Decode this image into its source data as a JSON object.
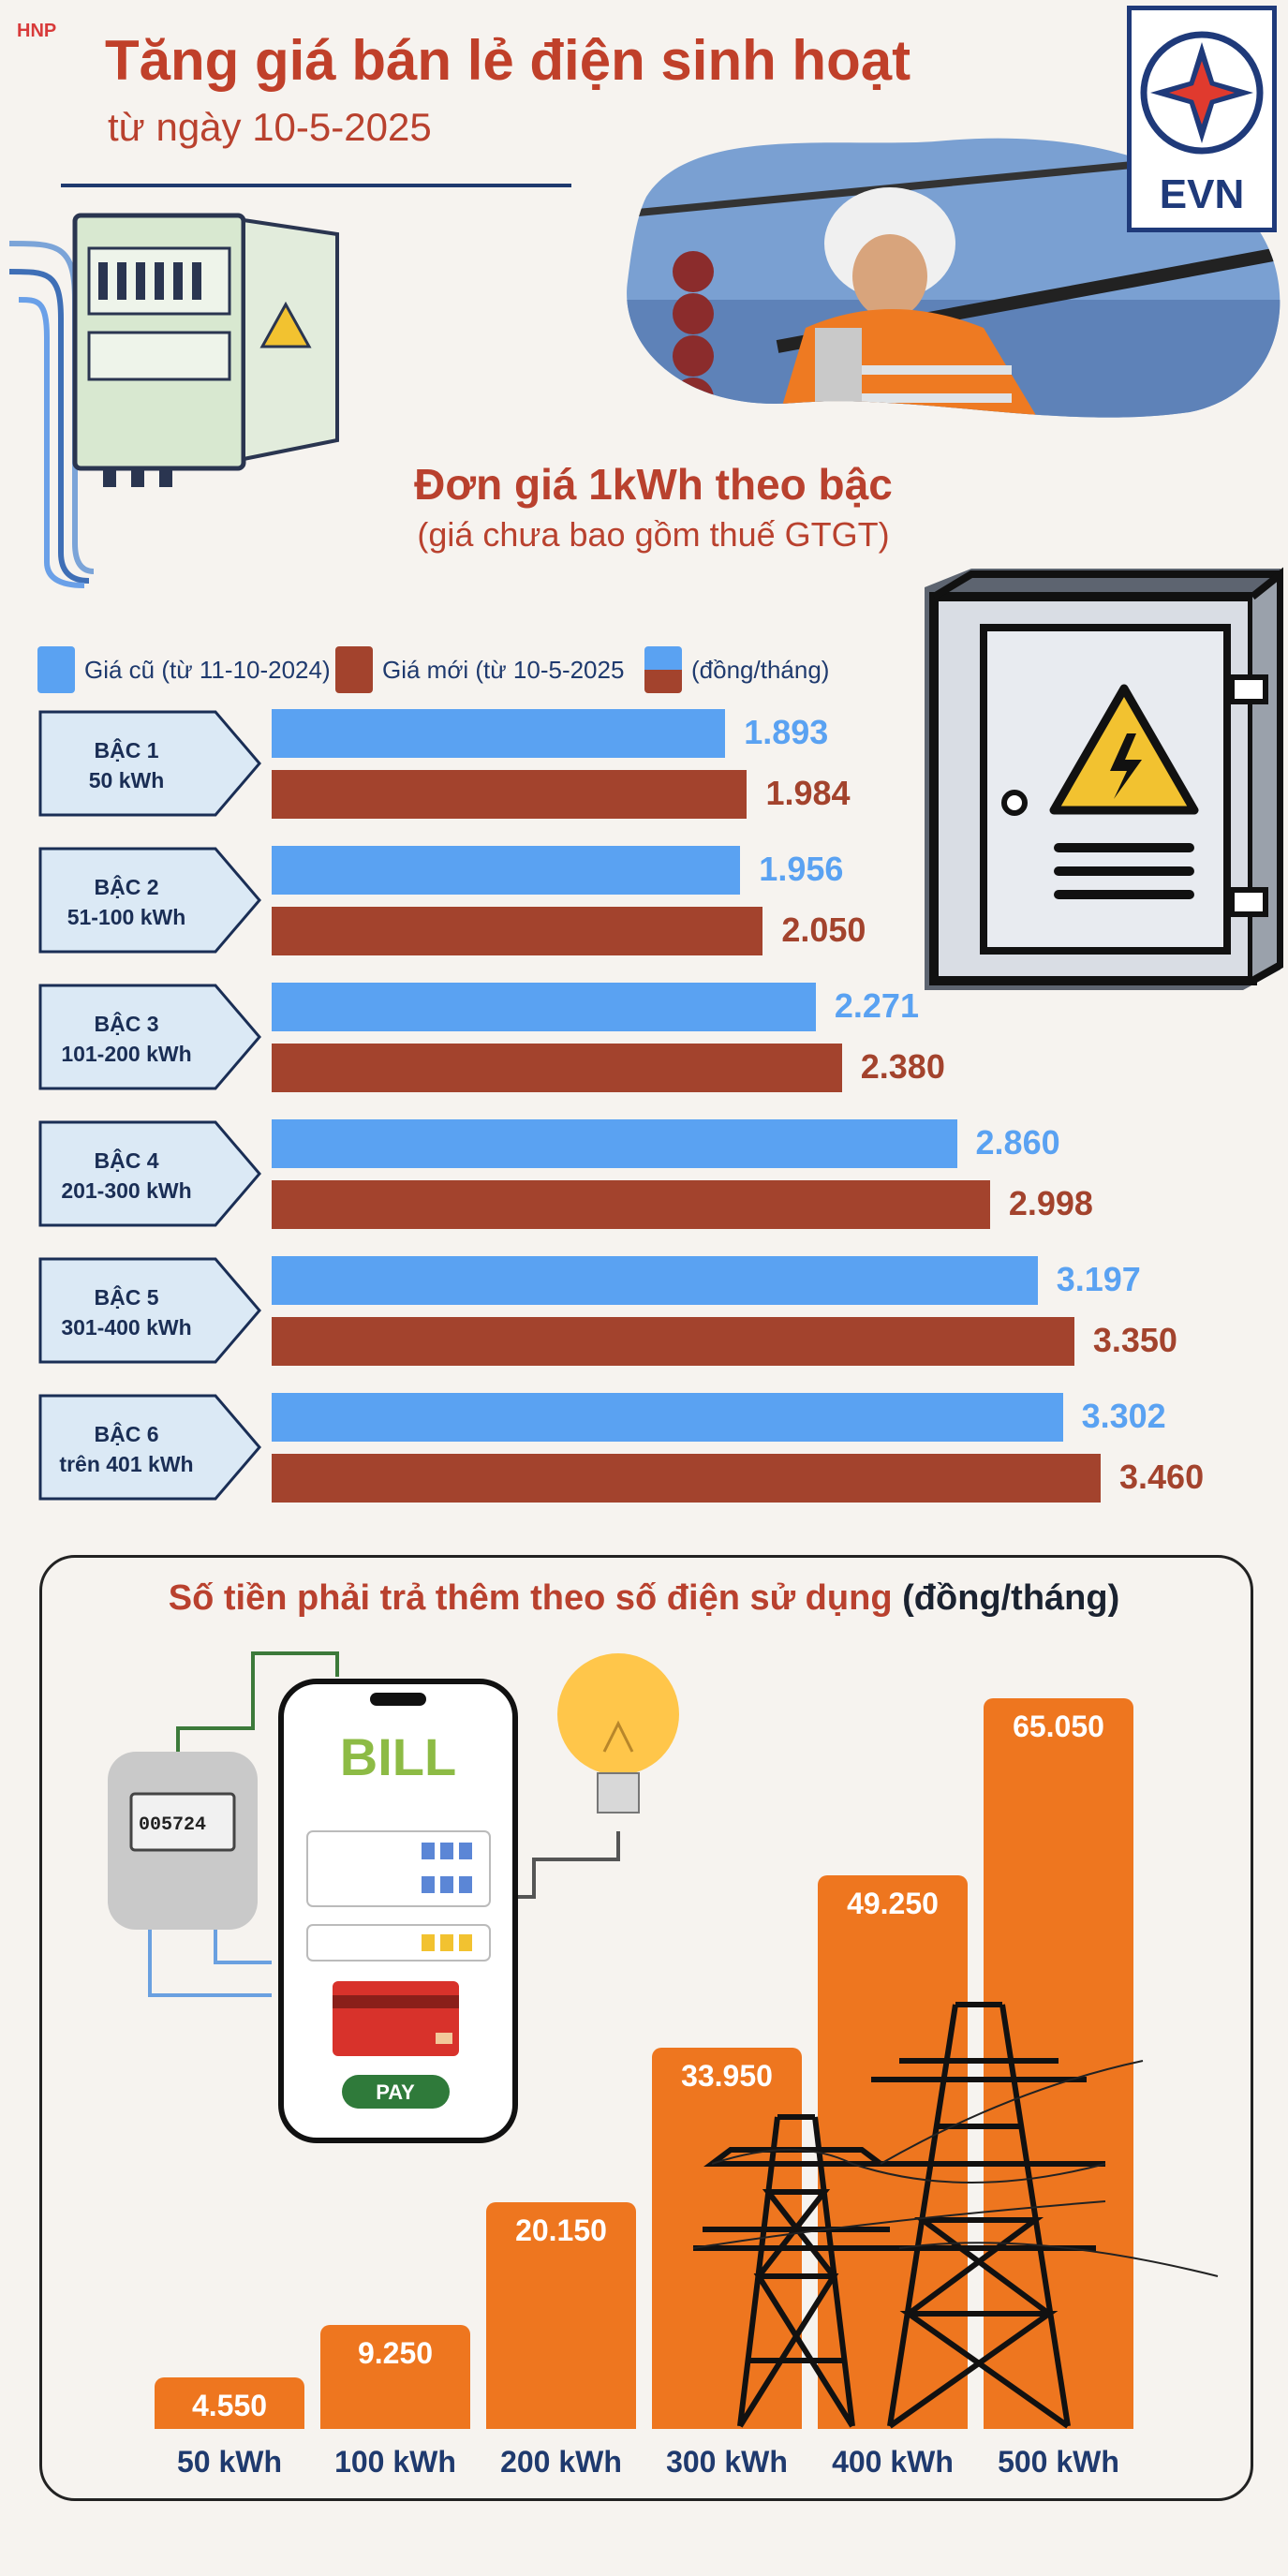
{
  "brand": "HNP",
  "title": "Tăng giá bán lẻ điện sinh hoạt",
  "subtitle": "từ ngày 10-5-2025",
  "logo_text": "EVN",
  "section1": {
    "title": "Đơn giá 1kWh theo bậc",
    "subtitle": "(giá chưa bao gồm thuế GTGT)"
  },
  "legend": {
    "old": "Giá cũ (từ 11-10-2024)",
    "new": "Giá mới (từ 10-5-2025",
    "unit": "(đồng/tháng)"
  },
  "colors": {
    "old": "#5aa2f2",
    "new": "#a3432d",
    "accent": "#ee761f",
    "title": "#c0402a",
    "navy": "#1f3a6e"
  },
  "section2": {
    "title_part1": "Số tiền phải trả thêm theo số điện sử dụng",
    "title_part2": "(đồng/tháng)"
  },
  "illustration": {
    "bill": "BILL",
    "pay": "PAY",
    "meter": "005724"
  },
  "chart_data": [
    {
      "type": "bar",
      "orientation": "horizontal",
      "categories": [
        "BẬC 1|50 kWh",
        "BẬC 2|51-100 kWh",
        "BẬC 3|101-200 kWh",
        "BẬC 4|201-300 kWh",
        "BẬC 5|301-400 kWh",
        "BẬC 6|trên 401 kWh"
      ],
      "tiers": [
        {
          "name": "BẬC 1",
          "range": "50 kWh"
        },
        {
          "name": "BẬC 2",
          "range": "51-100 kWh"
        },
        {
          "name": "BẬC 3",
          "range": "101-200 kWh"
        },
        {
          "name": "BẬC 4",
          "range": "201-300 kWh"
        },
        {
          "name": "BẬC 5",
          "range": "301-400 kWh"
        },
        {
          "name": "BẬC 6",
          "range": "trên 401 kWh"
        }
      ],
      "series": [
        {
          "name": "Giá cũ (từ 11-10-2024)",
          "values": [
            1893,
            1956,
            2271,
            2860,
            3197,
            3302
          ],
          "labels": [
            "1.893",
            "1.956",
            "2.271",
            "2.860",
            "3.197",
            "3.302"
          ]
        },
        {
          "name": "Giá mới (từ 10-5-2025",
          "values": [
            1984,
            2050,
            2380,
            2998,
            3350,
            3460
          ],
          "labels": [
            "1.984",
            "2.050",
            "2.380",
            "2.998",
            "3.350",
            "3.460"
          ]
        }
      ],
      "title": "Đơn giá 1kWh theo bậc",
      "xlim": [
        0,
        3460
      ]
    },
    {
      "type": "bar",
      "categories": [
        "50 kWh",
        "100 kWh",
        "200 kWh",
        "300 kWh",
        "400 kWh",
        "500 kWh"
      ],
      "values": [
        4550,
        9250,
        20150,
        33950,
        49250,
        65050
      ],
      "labels": [
        "4.550",
        "9.250",
        "20.150",
        "33.950",
        "49.250",
        "65.050"
      ],
      "title": "Số tiền phải trả thêm theo số điện sử dụng (đồng/tháng)",
      "ylim": [
        0,
        65050
      ]
    }
  ]
}
